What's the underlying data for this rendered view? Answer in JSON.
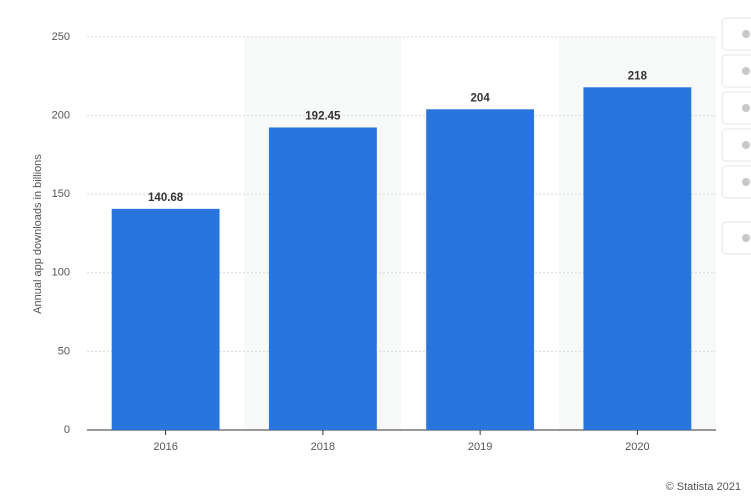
{
  "chart_data": {
    "type": "bar",
    "y_label": "Annual app downloads in billions",
    "categories": [
      "2016",
      "2018",
      "2019",
      "2020"
    ],
    "values": [
      140.68,
      192.45,
      204,
      218
    ],
    "color": "#2876dd",
    "ylim": [
      0,
      250
    ],
    "yticks": [
      0,
      50,
      100,
      150,
      200,
      250
    ],
    "grid": true,
    "credit": "© Statista 2021"
  }
}
